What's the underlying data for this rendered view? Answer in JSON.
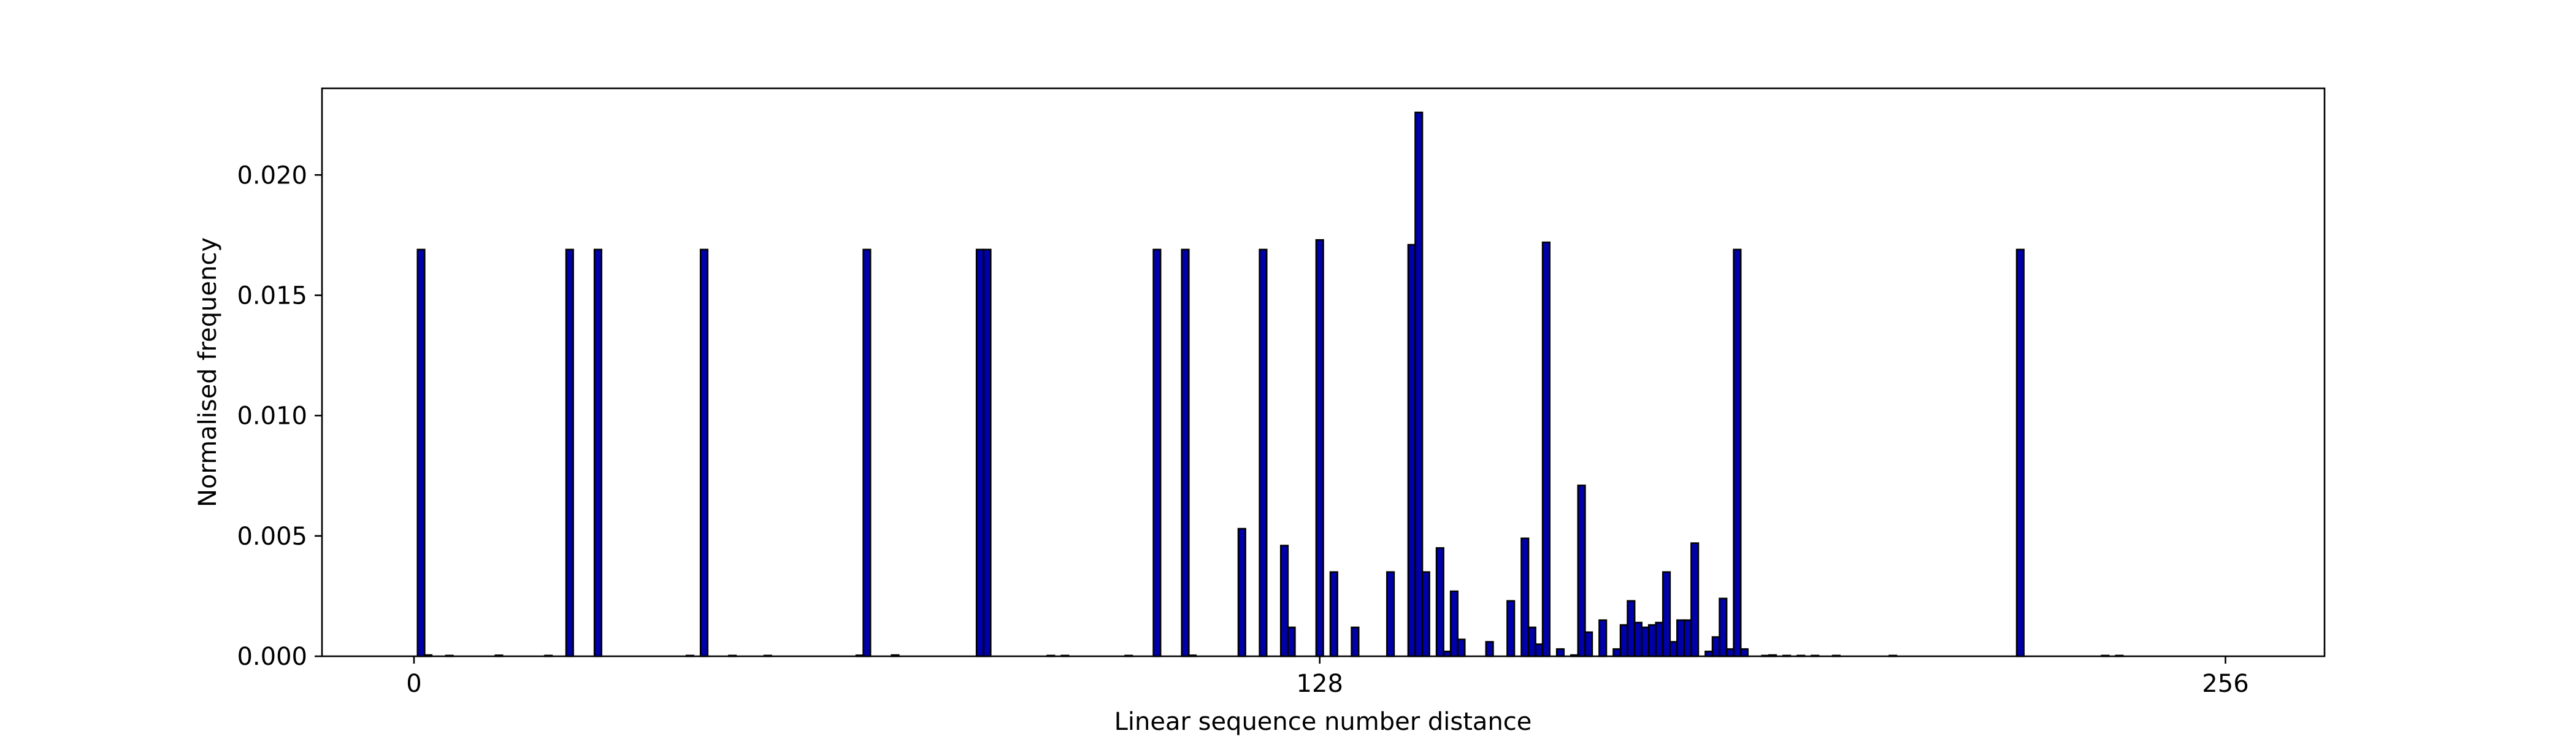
{
  "chart_data": {
    "type": "bar",
    "title": "",
    "xlabel": "Linear sequence number distance",
    "ylabel": "Normalised frequency",
    "xlim": [
      -13,
      270
    ],
    "ylim": [
      0,
      0.0236
    ],
    "xticks": [
      {
        "value": 0,
        "label": "0"
      },
      {
        "value": 128,
        "label": "128"
      },
      {
        "value": 256,
        "label": "256"
      }
    ],
    "yticks": [
      {
        "value": 0.0,
        "label": "0.000"
      },
      {
        "value": 0.005,
        "label": "0.005"
      },
      {
        "value": 0.01,
        "label": "0.010"
      },
      {
        "value": 0.015,
        "label": "0.015"
      },
      {
        "value": 0.02,
        "label": "0.020"
      }
    ],
    "grid": false,
    "bar_width": 1,
    "bar_color": "#0000aa",
    "edge_color": "#000000",
    "x": [
      1,
      2,
      5,
      12,
      19,
      22,
      26,
      39,
      41,
      45,
      50,
      63,
      64,
      68,
      80,
      81,
      90,
      92,
      101,
      105,
      109,
      110,
      117,
      120,
      123,
      124,
      128,
      130,
      133,
      138,
      141,
      142,
      143,
      145,
      146,
      147,
      148,
      152,
      155,
      157,
      158,
      159,
      160,
      162,
      164,
      165,
      166,
      168,
      170,
      171,
      172,
      173,
      174,
      175,
      176,
      177,
      178,
      179,
      180,
      181,
      183,
      184,
      185,
      186,
      187,
      188,
      191,
      192,
      194,
      196,
      198,
      201,
      209,
      227,
      239,
      241
    ],
    "values": [
      0.0169,
      5e-05,
      3e-05,
      4e-05,
      3e-05,
      0.0169,
      0.0169,
      3e-05,
      0.0169,
      3e-05,
      3e-05,
      4e-05,
      0.0169,
      5e-05,
      0.0169,
      0.0169,
      3e-05,
      3e-05,
      3e-05,
      0.0169,
      0.0169,
      4e-05,
      0.0053,
      0.0169,
      0.0046,
      0.0012,
      0.0173,
      0.0035,
      0.0012,
      0.0035,
      0.0171,
      0.0226,
      0.0035,
      0.0045,
      0.0002,
      0.0027,
      0.0007,
      0.0006,
      0.0023,
      0.0049,
      0.0012,
      0.0005,
      0.0172,
      0.0003,
      5e-05,
      0.0071,
      0.001,
      0.0015,
      0.0003,
      0.0013,
      0.0023,
      0.0014,
      0.0012,
      0.0013,
      0.0014,
      0.0035,
      0.0006,
      0.0015,
      0.0015,
      0.0047,
      0.0002,
      0.0008,
      0.0024,
      0.0003,
      0.0169,
      0.0003,
      3e-05,
      5e-05,
      3e-05,
      3e-05,
      3e-05,
      3e-05,
      3e-05,
      0.0169,
      3e-05,
      3e-05
    ]
  }
}
